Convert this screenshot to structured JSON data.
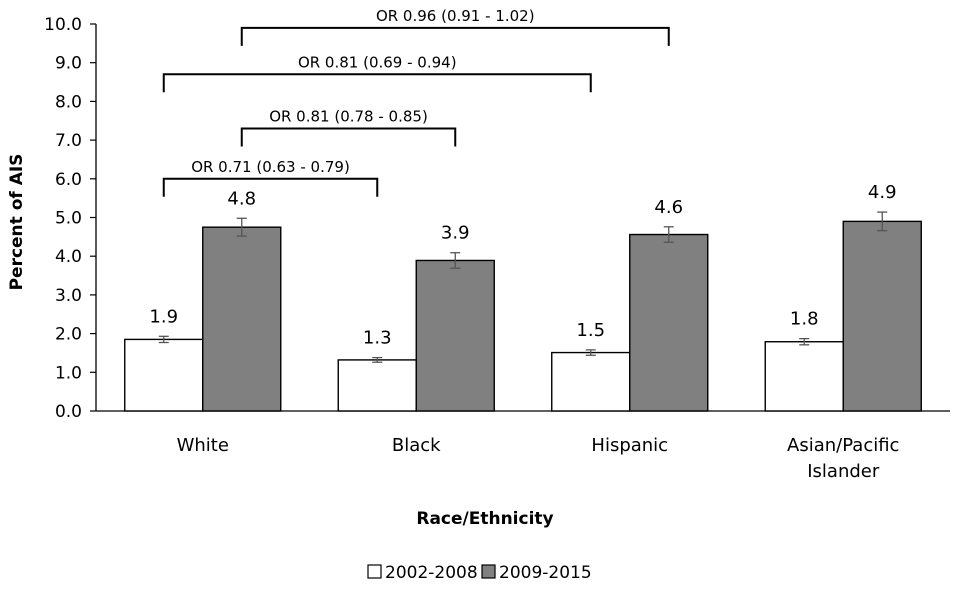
{
  "chart_data": {
    "type": "bar",
    "xlabel": "Race/Ethnicity",
    "ylabel": "Percent of AIS",
    "ylim": [
      0,
      10
    ],
    "yticks": [
      "0.0",
      "1.0",
      "2.0",
      "3.0",
      "4.0",
      "5.0",
      "6.0",
      "7.0",
      "8.0",
      "9.0",
      "10.0"
    ],
    "grid": false,
    "legend_position": "bottom",
    "categories": [
      [
        "White"
      ],
      [
        "Black"
      ],
      [
        "Hispanic"
      ],
      [
        "Asian/Pacific",
        "Islander"
      ]
    ],
    "series": [
      {
        "name": "2002-2008",
        "color": "#ffffff",
        "values": [
          1.85,
          1.32,
          1.51,
          1.79
        ],
        "labels": [
          "1.9",
          "1.3",
          "1.5",
          "1.8"
        ],
        "error": [
          0.08,
          0.06,
          0.07,
          0.08
        ]
      },
      {
        "name": "2009-2015",
        "color": "#808080",
        "values": [
          4.75,
          3.89,
          4.56,
          4.9
        ],
        "labels": [
          "4.8",
          "3.9",
          "4.6",
          "4.9"
        ],
        "error": [
          0.23,
          0.2,
          0.2,
          0.24
        ]
      }
    ],
    "comparisons": [
      {
        "from_category": 0,
        "from_series": 0,
        "to_category": 1,
        "to_series": 0,
        "level": 6.0,
        "text": "OR 0.71 (0.63 - 0.79)"
      },
      {
        "from_category": 0,
        "from_series": 1,
        "to_category": 1,
        "to_series": 1,
        "level": 7.3,
        "text": "OR 0.81 (0.78 - 0.85)"
      },
      {
        "from_category": 0,
        "from_series": 0,
        "to_category": 2,
        "to_series": 0,
        "level": 8.7,
        "text": "OR 0.81 (0.69 - 0.94)"
      },
      {
        "from_category": 0,
        "from_series": 1,
        "to_category": 2,
        "to_series": 1,
        "level": 9.9,
        "text": "OR 0.96 (0.91 - 1.02)"
      }
    ]
  }
}
